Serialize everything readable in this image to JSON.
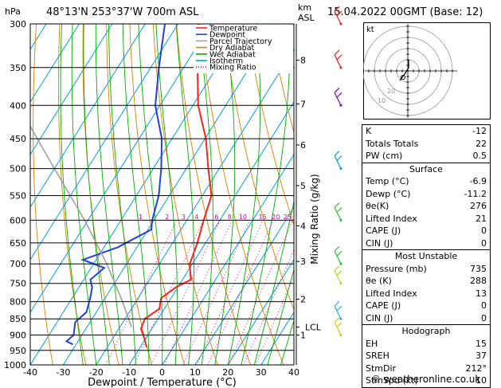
{
  "header": {
    "pressure_unit": "hPa",
    "location": "48°13'N  253°37'W  700m  ASL",
    "km_unit": "km",
    "asl_unit": "ASL",
    "datetime": "15.04.2022  00GMT  (Base: 12)"
  },
  "colors": {
    "temperature": "#ff2020",
    "dewpoint": "#2040e0",
    "parcel": "#a0a0a0",
    "dry_adiabat": "#e08000",
    "wet_adiabat": "#00b000",
    "isotherm": "#00a0e0",
    "mixing_ratio": "#e000a0"
  },
  "chart_data": {
    "type": "line",
    "title": "",
    "xlabel": "Dewpoint / Temperature (°C)",
    "ylabel_right": "Mixing Ratio (g/kg)",
    "xlim": [
      -40,
      40
    ],
    "ylim": [
      1000,
      300
    ],
    "y_scale": "log",
    "skew_deg_per_decade": 124,
    "pressure_ticks": [
      300,
      350,
      400,
      450,
      500,
      550,
      600,
      650,
      700,
      750,
      800,
      850,
      900,
      950,
      1000
    ],
    "temperature_ticks": [
      -40,
      -30,
      -20,
      -10,
      0,
      10,
      20,
      30,
      40
    ],
    "km_ticks": [
      {
        "label": "1",
        "p": 900
      },
      {
        "label": "2",
        "p": 793
      },
      {
        "label": "3",
        "p": 694
      },
      {
        "label": "4",
        "p": 612
      },
      {
        "label": "5",
        "p": 531
      },
      {
        "label": "6",
        "p": 460
      },
      {
        "label": "7",
        "p": 398
      },
      {
        "label": "8",
        "p": 341
      }
    ],
    "lcl": {
      "label": "LCL",
      "p": 875
    },
    "mixing_ratio_lines": [
      1,
      2,
      3,
      4,
      6,
      8,
      10,
      15,
      20,
      25
    ],
    "mixing_ratio_labels": [
      {
        "label": "1",
        "x": -6.5
      },
      {
        "label": "2",
        "x": 1.5
      },
      {
        "label": "3",
        "x": 6.5
      },
      {
        "label": "4",
        "x": 10.5
      },
      {
        "label": "6",
        "x": 16.5
      },
      {
        "label": "8",
        "x": 20.5
      },
      {
        "label": "10",
        "x": 24.5
      },
      {
        "label": "15",
        "x": 30.5
      },
      {
        "label": "20",
        "x": 34.5
      },
      {
        "label": "25",
        "x": 38
      }
    ],
    "series": [
      {
        "name": "Temperature",
        "points": [
          [
            300,
            -53.8
          ],
          [
            350,
            -45.8
          ],
          [
            400,
            -38.4
          ],
          [
            450,
            -29.7
          ],
          [
            500,
            -23.3
          ],
          [
            550,
            -17.2
          ],
          [
            600,
            -14.9
          ],
          [
            650,
            -12.5
          ],
          [
            700,
            -10.8
          ],
          [
            740,
            -7.5
          ],
          [
            760,
            -10.5
          ],
          [
            790,
            -13
          ],
          [
            820,
            -11.5
          ],
          [
            850,
            -14
          ],
          [
            880,
            -13.3
          ],
          [
            910,
            -10.5
          ],
          [
            940,
            -8
          ]
        ]
      },
      {
        "name": "Dewpoint",
        "points": [
          [
            300,
            -64
          ],
          [
            350,
            -57.5
          ],
          [
            400,
            -51.4
          ],
          [
            450,
            -43.1
          ],
          [
            500,
            -37.6
          ],
          [
            550,
            -33.2
          ],
          [
            600,
            -30.5
          ],
          [
            620,
            -29
          ],
          [
            660,
            -35.8
          ],
          [
            690,
            -44
          ],
          [
            710,
            -36
          ],
          [
            740,
            -38
          ],
          [
            760,
            -36
          ],
          [
            790,
            -34.5
          ],
          [
            830,
            -33
          ],
          [
            860,
            -34.5
          ],
          [
            900,
            -32.5
          ],
          [
            920,
            -33.5
          ],
          [
            930,
            -31
          ]
        ]
      },
      {
        "name": "Parcel Trajectory",
        "points": [
          [
            875,
            -16.5
          ],
          [
            800,
            -24
          ],
          [
            700,
            -36
          ],
          [
            600,
            -51
          ],
          [
            500,
            -70
          ],
          [
            400,
            -93
          ],
          [
            300,
            -120
          ]
        ]
      }
    ],
    "legend": [
      "Temperature",
      "Dewpoint",
      "Parcel Trajectory",
      "Dry Adiabat",
      "Wet Adiabat",
      "Isotherm",
      "Mixing Ratio"
    ],
    "legend_position": "top-right",
    "wind_barbs": [
      {
        "p": 300,
        "color": "#e03030"
      },
      {
        "p": 350,
        "color": "#e03030"
      },
      {
        "p": 400,
        "color": "#8020b0"
      },
      {
        "p": 500,
        "color": "#20a0e0"
      },
      {
        "p": 600,
        "color": "#40c040"
      },
      {
        "p": 700,
        "color": "#40c040"
      },
      {
        "p": 750,
        "color": "#c0d040"
      },
      {
        "p": 850,
        "color": "#40b0d0"
      },
      {
        "p": 900,
        "color": "#d0d020"
      }
    ]
  },
  "hodograph": {
    "unit_label": "kt",
    "ring_labels": [
      "10",
      "20"
    ]
  },
  "indices": {
    "rows": [
      {
        "label": "K",
        "value": "-12"
      },
      {
        "label": "Totals Totals",
        "value": "22"
      },
      {
        "label": "PW (cm)",
        "value": "0.5"
      }
    ],
    "surface_title": "Surface",
    "surface": [
      {
        "label": "Temp (°C)",
        "value": "-6.9"
      },
      {
        "label": "Dewp (°C)",
        "value": "-11.2"
      },
      {
        "label": "θe(K)",
        "value": "276"
      },
      {
        "label": "Lifted Index",
        "value": "21"
      },
      {
        "label": "CAPE (J)",
        "value": "0"
      },
      {
        "label": "CIN (J)",
        "value": "0"
      }
    ],
    "mu_title": "Most Unstable",
    "mu": [
      {
        "label": "Pressure (mb)",
        "value": "735"
      },
      {
        "label": "θe (K)",
        "value": "288"
      },
      {
        "label": "Lifted Index",
        "value": "13"
      },
      {
        "label": "CAPE (J)",
        "value": "0"
      },
      {
        "label": "CIN (J)",
        "value": "0"
      }
    ],
    "hodo_title": "Hodograph",
    "hodo": [
      {
        "label": "EH",
        "value": "15"
      },
      {
        "label": "SREH",
        "value": "37"
      },
      {
        "label": "StmDir",
        "value": "212°"
      },
      {
        "label": "StmSpd (kt)",
        "value": "10"
      }
    ]
  },
  "footer": {
    "copyright": "© weatheronline.co.uk"
  }
}
